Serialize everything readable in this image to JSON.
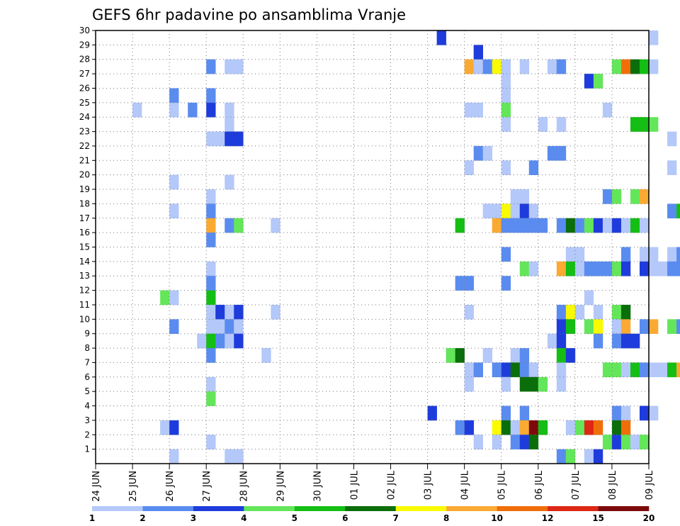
{
  "chart_data": {
    "type": "heatmap",
    "title": "GEFS 6hr padavine po ansamblima Vranje",
    "xlabel": "",
    "ylabel": "",
    "x_ticks": [
      "24 JUN",
      "25 JUN",
      "26 JUN",
      "27 JUN",
      "28 JUN",
      "29 JUN",
      "30 JUN",
      "01 JUL",
      "02 JUL",
      "03 JUL",
      "04 JUL",
      "05 JUL",
      "06 JUL",
      "07 JUL",
      "08 JUL",
      "09 JUL"
    ],
    "y_ticks": [
      "1",
      "2",
      "3",
      "4",
      "5",
      "6",
      "7",
      "8",
      "9",
      "10",
      "11",
      "12",
      "13",
      "14",
      "15",
      "16",
      "17",
      "18",
      "19",
      "20",
      "21",
      "22",
      "23",
      "24",
      "25",
      "26",
      "27",
      "28",
      "29",
      "30"
    ],
    "x_range_days": [
      0,
      15
    ],
    "y_range": [
      0,
      30
    ],
    "step_hours": 6,
    "grid": true,
    "legend": {
      "placement": "bottom",
      "colors": [
        "#b4c8fa",
        "#5a8cf0",
        "#1e3cdc",
        "#64e65a",
        "#14be14",
        "#0a6e0a",
        "#fafa00",
        "#faaa32",
        "#f06e0a",
        "#dc2814",
        "#7d0a0a"
      ],
      "labels": [
        "1",
        "2",
        "3",
        "4",
        "5",
        "6",
        "7",
        "8",
        "10",
        "12",
        "15",
        "20"
      ]
    },
    "cells": [
      {
        "m": 30,
        "t": 37,
        "c": 3
      },
      {
        "m": 30,
        "t": 60,
        "c": 1
      },
      {
        "m": 29,
        "t": 41,
        "c": 3
      },
      {
        "m": 28,
        "t": 12,
        "c": 2
      },
      {
        "m": 28,
        "t": 14,
        "c": 1
      },
      {
        "m": 28,
        "t": 15,
        "c": 1
      },
      {
        "m": 28,
        "t": 40,
        "c": 8
      },
      {
        "m": 28,
        "t": 41,
        "c": 1
      },
      {
        "m": 28,
        "t": 42,
        "c": 2
      },
      {
        "m": 28,
        "t": 43,
        "c": 7
      },
      {
        "m": 28,
        "t": 44,
        "c": 1
      },
      {
        "m": 28,
        "t": 46,
        "c": 1
      },
      {
        "m": 28,
        "t": 49,
        "c": 1
      },
      {
        "m": 28,
        "t": 50,
        "c": 2
      },
      {
        "m": 28,
        "t": 56,
        "c": 4
      },
      {
        "m": 28,
        "t": 57,
        "c": 9
      },
      {
        "m": 28,
        "t": 58,
        "c": 6
      },
      {
        "m": 28,
        "t": 59,
        "c": 5
      },
      {
        "m": 28,
        "t": 60,
        "c": 1
      },
      {
        "m": 27,
        "t": 44,
        "c": 1
      },
      {
        "m": 27,
        "t": 53,
        "c": 3
      },
      {
        "m": 27,
        "t": 54,
        "c": 4
      },
      {
        "m": 26,
        "t": 8,
        "c": 2
      },
      {
        "m": 26,
        "t": 12,
        "c": 2
      },
      {
        "m": 26,
        "t": 44,
        "c": 1
      },
      {
        "m": 25,
        "t": 4,
        "c": 1
      },
      {
        "m": 25,
        "t": 8,
        "c": 1
      },
      {
        "m": 25,
        "t": 10,
        "c": 2
      },
      {
        "m": 25,
        "t": 12,
        "c": 3
      },
      {
        "m": 25,
        "t": 14,
        "c": 1
      },
      {
        "m": 25,
        "t": 40,
        "c": 1
      },
      {
        "m": 25,
        "t": 41,
        "c": 1
      },
      {
        "m": 25,
        "t": 44,
        "c": 4
      },
      {
        "m": 25,
        "t": 55,
        "c": 1
      },
      {
        "m": 24,
        "t": 14,
        "c": 1
      },
      {
        "m": 24,
        "t": 44,
        "c": 1
      },
      {
        "m": 24,
        "t": 48,
        "c": 1
      },
      {
        "m": 24,
        "t": 50,
        "c": 1
      },
      {
        "m": 24,
        "t": 58,
        "c": 5
      },
      {
        "m": 24,
        "t": 59,
        "c": 5
      },
      {
        "m": 24,
        "t": 60,
        "c": 4
      },
      {
        "m": 23,
        "t": 12,
        "c": 1
      },
      {
        "m": 23,
        "t": 13,
        "c": 1
      },
      {
        "m": 23,
        "t": 14,
        "c": 3
      },
      {
        "m": 23,
        "t": 15,
        "c": 3
      },
      {
        "m": 23,
        "t": 62,
        "c": 1
      },
      {
        "m": 22,
        "t": 41,
        "c": 2
      },
      {
        "m": 22,
        "t": 42,
        "c": 1
      },
      {
        "m": 22,
        "t": 49,
        "c": 2
      },
      {
        "m": 22,
        "t": 50,
        "c": 2
      },
      {
        "m": 21,
        "t": 40,
        "c": 1
      },
      {
        "m": 21,
        "t": 44,
        "c": 1
      },
      {
        "m": 21,
        "t": 47,
        "c": 2
      },
      {
        "m": 21,
        "t": 62,
        "c": 1
      },
      {
        "m": 20,
        "t": 8,
        "c": 1
      },
      {
        "m": 20,
        "t": 14,
        "c": 1
      },
      {
        "m": 19,
        "t": 12,
        "c": 1
      },
      {
        "m": 19,
        "t": 45,
        "c": 1
      },
      {
        "m": 19,
        "t": 46,
        "c": 1
      },
      {
        "m": 19,
        "t": 55,
        "c": 2
      },
      {
        "m": 19,
        "t": 56,
        "c": 4
      },
      {
        "m": 19,
        "t": 58,
        "c": 4
      },
      {
        "m": 19,
        "t": 59,
        "c": 8
      },
      {
        "m": 18,
        "t": 8,
        "c": 1
      },
      {
        "m": 18,
        "t": 12,
        "c": 2
      },
      {
        "m": 18,
        "t": 42,
        "c": 1
      },
      {
        "m": 18,
        "t": 43,
        "c": 1
      },
      {
        "m": 18,
        "t": 44,
        "c": 7
      },
      {
        "m": 18,
        "t": 45,
        "c": 1
      },
      {
        "m": 18,
        "t": 46,
        "c": 3
      },
      {
        "m": 18,
        "t": 47,
        "c": 1
      },
      {
        "m": 18,
        "t": 62,
        "c": 2
      },
      {
        "m": 18,
        "t": 63,
        "c": 5
      },
      {
        "m": 18,
        "t": 64,
        "c": 5
      },
      {
        "m": 17,
        "t": 12,
        "c": 8
      },
      {
        "m": 17,
        "t": 14,
        "c": 2
      },
      {
        "m": 17,
        "t": 15,
        "c": 4
      },
      {
        "m": 17,
        "t": 19,
        "c": 1
      },
      {
        "m": 17,
        "t": 39,
        "c": 5
      },
      {
        "m": 17,
        "t": 43,
        "c": 8
      },
      {
        "m": 17,
        "t": 44,
        "c": 2
      },
      {
        "m": 17,
        "t": 45,
        "c": 2
      },
      {
        "m": 17,
        "t": 46,
        "c": 2
      },
      {
        "m": 17,
        "t": 47,
        "c": 2
      },
      {
        "m": 17,
        "t": 48,
        "c": 2
      },
      {
        "m": 17,
        "t": 50,
        "c": 2
      },
      {
        "m": 17,
        "t": 51,
        "c": 6
      },
      {
        "m": 17,
        "t": 52,
        "c": 2
      },
      {
        "m": 17,
        "t": 53,
        "c": 4
      },
      {
        "m": 17,
        "t": 54,
        "c": 3
      },
      {
        "m": 17,
        "t": 55,
        "c": 1
      },
      {
        "m": 17,
        "t": 56,
        "c": 3
      },
      {
        "m": 17,
        "t": 57,
        "c": 1
      },
      {
        "m": 17,
        "t": 58,
        "c": 5
      },
      {
        "m": 17,
        "t": 59,
        "c": 1
      },
      {
        "m": 16,
        "t": 12,
        "c": 2
      },
      {
        "m": 15,
        "t": 44,
        "c": 2
      },
      {
        "m": 15,
        "t": 51,
        "c": 1
      },
      {
        "m": 15,
        "t": 52,
        "c": 1
      },
      {
        "m": 15,
        "t": 57,
        "c": 2
      },
      {
        "m": 15,
        "t": 59,
        "c": 1
      },
      {
        "m": 15,
        "t": 60,
        "c": 1
      },
      {
        "m": 15,
        "t": 62,
        "c": 1
      },
      {
        "m": 15,
        "t": 63,
        "c": 2
      },
      {
        "m": 14,
        "t": 12,
        "c": 1
      },
      {
        "m": 14,
        "t": 46,
        "c": 4
      },
      {
        "m": 14,
        "t": 47,
        "c": 1
      },
      {
        "m": 14,
        "t": 50,
        "c": 8
      },
      {
        "m": 14,
        "t": 51,
        "c": 5
      },
      {
        "m": 14,
        "t": 52,
        "c": 1
      },
      {
        "m": 14,
        "t": 53,
        "c": 2
      },
      {
        "m": 14,
        "t": 54,
        "c": 2
      },
      {
        "m": 14,
        "t": 55,
        "c": 2
      },
      {
        "m": 14,
        "t": 56,
        "c": 4
      },
      {
        "m": 14,
        "t": 57,
        "c": 3
      },
      {
        "m": 14,
        "t": 59,
        "c": 3
      },
      {
        "m": 14,
        "t": 60,
        "c": 1
      },
      {
        "m": 14,
        "t": 61,
        "c": 1
      },
      {
        "m": 14,
        "t": 62,
        "c": 2
      },
      {
        "m": 14,
        "t": 63,
        "c": 2
      },
      {
        "m": 13,
        "t": 12,
        "c": 2
      },
      {
        "m": 13,
        "t": 39,
        "c": 2
      },
      {
        "m": 13,
        "t": 40,
        "c": 2
      },
      {
        "m": 13,
        "t": 44,
        "c": 2
      },
      {
        "m": 12,
        "t": 7,
        "c": 4
      },
      {
        "m": 12,
        "t": 8,
        "c": 1
      },
      {
        "m": 12,
        "t": 12,
        "c": 5
      },
      {
        "m": 12,
        "t": 53,
        "c": 1
      },
      {
        "m": 11,
        "t": 12,
        "c": 1
      },
      {
        "m": 11,
        "t": 13,
        "c": 3
      },
      {
        "m": 11,
        "t": 14,
        "c": 1
      },
      {
        "m": 11,
        "t": 15,
        "c": 3
      },
      {
        "m": 11,
        "t": 19,
        "c": 1
      },
      {
        "m": 11,
        "t": 40,
        "c": 1
      },
      {
        "m": 11,
        "t": 50,
        "c": 2
      },
      {
        "m": 11,
        "t": 51,
        "c": 7
      },
      {
        "m": 11,
        "t": 52,
        "c": 1
      },
      {
        "m": 11,
        "t": 54,
        "c": 1
      },
      {
        "m": 11,
        "t": 56,
        "c": 4
      },
      {
        "m": 11,
        "t": 57,
        "c": 6
      },
      {
        "m": 10,
        "t": 8,
        "c": 2
      },
      {
        "m": 10,
        "t": 12,
        "c": 1
      },
      {
        "m": 10,
        "t": 13,
        "c": 1
      },
      {
        "m": 10,
        "t": 14,
        "c": 2
      },
      {
        "m": 10,
        "t": 15,
        "c": 1
      },
      {
        "m": 10,
        "t": 50,
        "c": 3
      },
      {
        "m": 10,
        "t": 51,
        "c": 5
      },
      {
        "m": 10,
        "t": 53,
        "c": 4
      },
      {
        "m": 10,
        "t": 54,
        "c": 7
      },
      {
        "m": 10,
        "t": 56,
        "c": 1
      },
      {
        "m": 10,
        "t": 57,
        "c": 8
      },
      {
        "m": 10,
        "t": 59,
        "c": 2
      },
      {
        "m": 10,
        "t": 60,
        "c": 8
      },
      {
        "m": 10,
        "t": 62,
        "c": 4
      },
      {
        "m": 10,
        "t": 63,
        "c": 2
      },
      {
        "m": 9,
        "t": 11,
        "c": 1
      },
      {
        "m": 9,
        "t": 12,
        "c": 5
      },
      {
        "m": 9,
        "t": 13,
        "c": 2
      },
      {
        "m": 9,
        "t": 14,
        "c": 1
      },
      {
        "m": 9,
        "t": 15,
        "c": 3
      },
      {
        "m": 9,
        "t": 49,
        "c": 1
      },
      {
        "m": 9,
        "t": 50,
        "c": 3
      },
      {
        "m": 9,
        "t": 54,
        "c": 2
      },
      {
        "m": 9,
        "t": 56,
        "c": 2
      },
      {
        "m": 9,
        "t": 57,
        "c": 3
      },
      {
        "m": 9,
        "t": 58,
        "c": 3
      },
      {
        "m": 8,
        "t": 12,
        "c": 2
      },
      {
        "m": 8,
        "t": 18,
        "c": 1
      },
      {
        "m": 8,
        "t": 38,
        "c": 4
      },
      {
        "m": 8,
        "t": 39,
        "c": 6
      },
      {
        "m": 8,
        "t": 42,
        "c": 1
      },
      {
        "m": 8,
        "t": 45,
        "c": 1
      },
      {
        "m": 8,
        "t": 46,
        "c": 2
      },
      {
        "m": 8,
        "t": 50,
        "c": 5
      },
      {
        "m": 8,
        "t": 51,
        "c": 3
      },
      {
        "m": 7,
        "t": 40,
        "c": 1
      },
      {
        "m": 7,
        "t": 41,
        "c": 2
      },
      {
        "m": 7,
        "t": 43,
        "c": 2
      },
      {
        "m": 7,
        "t": 44,
        "c": 3
      },
      {
        "m": 7,
        "t": 45,
        "c": 6
      },
      {
        "m": 7,
        "t": 46,
        "c": 2
      },
      {
        "m": 7,
        "t": 47,
        "c": 1
      },
      {
        "m": 7,
        "t": 50,
        "c": 1
      },
      {
        "m": 7,
        "t": 55,
        "c": 4
      },
      {
        "m": 7,
        "t": 56,
        "c": 4
      },
      {
        "m": 7,
        "t": 57,
        "c": 1
      },
      {
        "m": 7,
        "t": 58,
        "c": 5
      },
      {
        "m": 7,
        "t": 59,
        "c": 2
      },
      {
        "m": 7,
        "t": 60,
        "c": 1
      },
      {
        "m": 7,
        "t": 61,
        "c": 1
      },
      {
        "m": 7,
        "t": 62,
        "c": 5
      },
      {
        "m": 7,
        "t": 63,
        "c": 8
      },
      {
        "m": 6,
        "t": 12,
        "c": 1
      },
      {
        "m": 6,
        "t": 40,
        "c": 1
      },
      {
        "m": 6,
        "t": 44,
        "c": 1
      },
      {
        "m": 6,
        "t": 46,
        "c": 6
      },
      {
        "m": 6,
        "t": 47,
        "c": 6
      },
      {
        "m": 6,
        "t": 48,
        "c": 4
      },
      {
        "m": 6,
        "t": 50,
        "c": 1
      },
      {
        "m": 5,
        "t": 12,
        "c": 4
      },
      {
        "m": 4,
        "t": 36,
        "c": 3
      },
      {
        "m": 4,
        "t": 44,
        "c": 2
      },
      {
        "m": 4,
        "t": 46,
        "c": 2
      },
      {
        "m": 4,
        "t": 56,
        "c": 2
      },
      {
        "m": 4,
        "t": 57,
        "c": 1
      },
      {
        "m": 4,
        "t": 59,
        "c": 3
      },
      {
        "m": 4,
        "t": 60,
        "c": 1
      },
      {
        "m": 3,
        "t": 7,
        "c": 1
      },
      {
        "m": 3,
        "t": 8,
        "c": 3
      },
      {
        "m": 3,
        "t": 39,
        "c": 2
      },
      {
        "m": 3,
        "t": 40,
        "c": 3
      },
      {
        "m": 3,
        "t": 43,
        "c": 7
      },
      {
        "m": 3,
        "t": 44,
        "c": 6
      },
      {
        "m": 3,
        "t": 45,
        "c": 1
      },
      {
        "m": 3,
        "t": 46,
        "c": 8
      },
      {
        "m": 3,
        "t": 47,
        "c": 11
      },
      {
        "m": 3,
        "t": 48,
        "c": 5
      },
      {
        "m": 3,
        "t": 51,
        "c": 1
      },
      {
        "m": 3,
        "t": 52,
        "c": 4
      },
      {
        "m": 3,
        "t": 53,
        "c": 10
      },
      {
        "m": 3,
        "t": 54,
        "c": 9
      },
      {
        "m": 3,
        "t": 56,
        "c": 6
      },
      {
        "m": 3,
        "t": 57,
        "c": 9
      },
      {
        "m": 3,
        "t": 64,
        "c": 4
      },
      {
        "m": 2,
        "t": 12,
        "c": 1
      },
      {
        "m": 2,
        "t": 41,
        "c": 1
      },
      {
        "m": 2,
        "t": 43,
        "c": 1
      },
      {
        "m": 2,
        "t": 45,
        "c": 2
      },
      {
        "m": 2,
        "t": 46,
        "c": 3
      },
      {
        "m": 2,
        "t": 47,
        "c": 6
      },
      {
        "m": 2,
        "t": 55,
        "c": 4
      },
      {
        "m": 2,
        "t": 56,
        "c": 3
      },
      {
        "m": 2,
        "t": 57,
        "c": 4
      },
      {
        "m": 2,
        "t": 58,
        "c": 1
      },
      {
        "m": 2,
        "t": 59,
        "c": 4
      },
      {
        "m": 2,
        "t": 64,
        "c": 5
      },
      {
        "m": 1,
        "t": 8,
        "c": 1
      },
      {
        "m": 1,
        "t": 14,
        "c": 1
      },
      {
        "m": 1,
        "t": 15,
        "c": 1
      },
      {
        "m": 1,
        "t": 50,
        "c": 2
      },
      {
        "m": 1,
        "t": 51,
        "c": 4
      },
      {
        "m": 1,
        "t": 53,
        "c": 1
      },
      {
        "m": 1,
        "t": 54,
        "c": 3
      }
    ]
  }
}
